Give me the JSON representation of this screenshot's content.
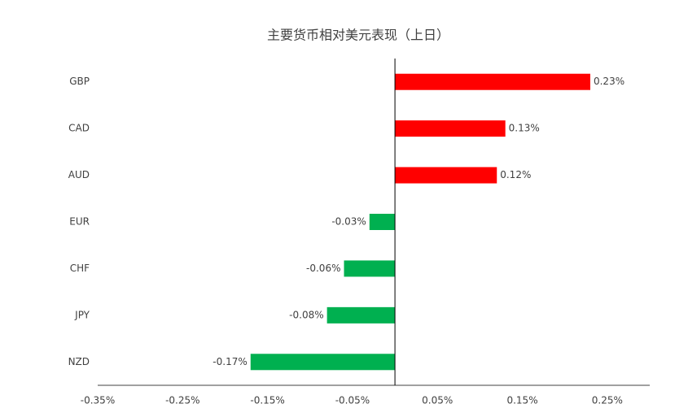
{
  "chart_data": {
    "type": "hbar",
    "title": "主要货币相对美元表现（上日）",
    "categories": [
      "GBP",
      "CAD",
      "AUD",
      "EUR",
      "CHF",
      "JPY",
      "NZD"
    ],
    "values": [
      0.23,
      0.13,
      0.12,
      -0.03,
      -0.06,
      -0.08,
      -0.17
    ],
    "value_labels": [
      "0.23%",
      "0.13%",
      "0.12%",
      "-0.03%",
      "-0.06%",
      "-0.08%",
      "-0.17%"
    ],
    "positive_color": "#ff0000",
    "negative_color": "#00b050",
    "xlim": [
      -0.35,
      0.3
    ],
    "xticks": [
      {
        "value": -0.35,
        "label": "-0.35%"
      },
      {
        "value": -0.25,
        "label": "-0.25%"
      },
      {
        "value": -0.15,
        "label": "-0.15%"
      },
      {
        "value": -0.05,
        "label": "-0.05%"
      },
      {
        "value": 0.05,
        "label": "0.05%"
      },
      {
        "value": 0.15,
        "label": "0.15%"
      },
      {
        "value": 0.25,
        "label": "0.25%"
      }
    ]
  }
}
